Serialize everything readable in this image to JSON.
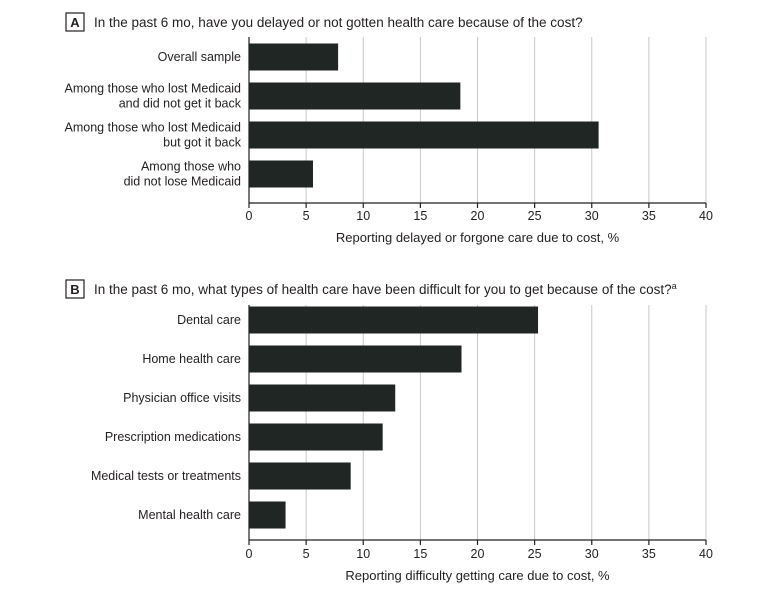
{
  "bar_color": "#1f2623",
  "chart_data": [
    {
      "type": "bar",
      "orientation": "horizontal",
      "panel": "A",
      "title": "In the past 6 mo, have you delayed or not gotten health care because of the cost?",
      "title_superscript": "",
      "categories": [
        [
          "Overall sample"
        ],
        [
          "Among those who lost Medicaid",
          "and did not get it back"
        ],
        [
          "Among those who lost Medicaid",
          "but got it back"
        ],
        [
          "Among those who",
          "did not lose Medicaid"
        ]
      ],
      "values": [
        7.8,
        18.5,
        30.6,
        5.6
      ],
      "xlim": [
        0,
        40
      ],
      "xticks": [
        "0",
        "5",
        "10",
        "15",
        "20",
        "25",
        "30",
        "35",
        "40"
      ],
      "xlabel": "Reporting delayed or forgone care due to cost, %",
      "grid": "vertical"
    },
    {
      "type": "bar",
      "orientation": "horizontal",
      "panel": "B",
      "title": "In the past 6 mo, what types of health care have been difficult for you to get because of the cost?",
      "title_superscript": "a",
      "categories": [
        [
          "Dental care"
        ],
        [
          "Home health care"
        ],
        [
          "Physician office visits"
        ],
        [
          "Prescription medications"
        ],
        [
          "Medical tests or treatments"
        ],
        [
          "Mental health care"
        ]
      ],
      "values": [
        25.3,
        18.6,
        12.8,
        11.7,
        8.9,
        3.2
      ],
      "xlim": [
        0,
        40
      ],
      "xticks": [
        "0",
        "5",
        "10",
        "15",
        "20",
        "25",
        "30",
        "35",
        "40"
      ],
      "xlabel": "Reporting difficulty getting care due to cost, %",
      "grid": "vertical"
    }
  ]
}
